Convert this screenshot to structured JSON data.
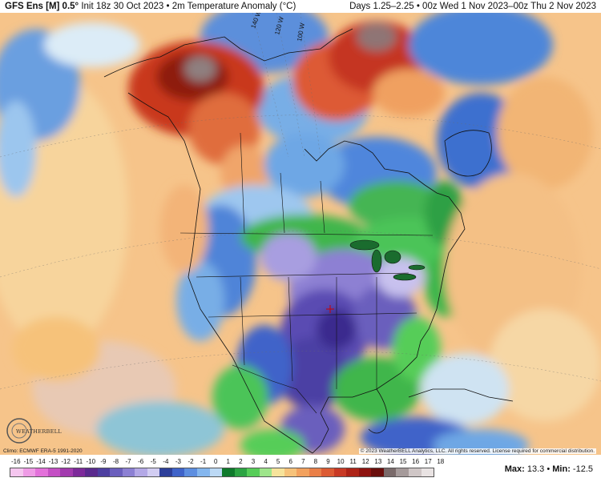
{
  "header": {
    "model": "GFS Ens [M] 0.5°",
    "init": "Init 18z 30 Oct 2023",
    "sep": "•",
    "field": "2m Temperature Anomaly (°C)",
    "valid": "Days 1.25–2.25 • 00z Wed 1 Nov 2023–00z Thu 2 Nov 2023"
  },
  "credits": {
    "climo": "Climo: ECMWF ERA-5 1991-2020",
    "copyright": "© 2023 WeatherBELL Analytics, LLC. All rights reserved. License required for commercial distribution.",
    "logo_text": "WEATHERBELL"
  },
  "map_labels": [
    "140 W",
    "120 W",
    "100 W"
  ],
  "legend": {
    "labels": [
      "-16",
      "-15",
      "-14",
      "-13",
      "-12",
      "-11",
      "-10",
      "-9",
      "-8",
      "-7",
      "-6",
      "-5",
      "-4",
      "-3",
      "-2",
      "-1",
      "0",
      "1",
      "2",
      "3",
      "4",
      "5",
      "6",
      "7",
      "8",
      "9",
      "10",
      "11",
      "12",
      "13",
      "14",
      "15",
      "16",
      "17",
      "18"
    ],
    "colors": [
      "#f5c6ef",
      "#ef9be6",
      "#e371da",
      "#c44fc4",
      "#a23aae",
      "#7d2a9a",
      "#5a2a8e",
      "#4d3fa0",
      "#6b5fbd",
      "#8c80d3",
      "#b3a8e6",
      "#d2cdf2",
      "#2d3f9a",
      "#3f63c9",
      "#5d8ee0",
      "#84b6ee",
      "#bcd9f5",
      "#0f7a2c",
      "#2ca443",
      "#56cd58",
      "#9ee58b",
      "#f6e39b",
      "#f6c27a",
      "#f2a15e",
      "#e97f48",
      "#dc5b34",
      "#c83a25",
      "#ad2317",
      "#8e1310",
      "#6a0e0c",
      "#7a6a6a",
      "#a59a9a",
      "#cfc6c6",
      "#e9e3e3"
    ],
    "max_label": "Max:",
    "max_value": "13.3",
    "sep": "•",
    "min_label": "Min:",
    "min_value": "-12.5"
  }
}
